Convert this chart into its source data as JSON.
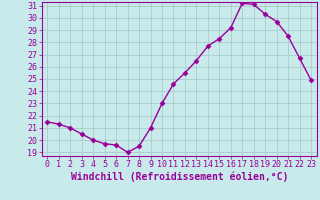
{
  "x": [
    0,
    1,
    2,
    3,
    4,
    5,
    6,
    7,
    8,
    9,
    10,
    11,
    12,
    13,
    14,
    15,
    16,
    17,
    18,
    19,
    20,
    21,
    22,
    23
  ],
  "y": [
    21.5,
    21.3,
    21.0,
    20.5,
    20.0,
    19.7,
    19.6,
    19.0,
    19.5,
    21.0,
    23.0,
    24.6,
    25.5,
    26.5,
    27.7,
    28.3,
    29.2,
    31.2,
    31.1,
    30.3,
    29.7,
    28.5,
    26.7,
    24.9
  ],
  "line_color": "#990099",
  "marker": "D",
  "marker_size": 2.5,
  "bg_color": "#c8eaea",
  "grid_color": "#aacccc",
  "xlabel": "Windchill (Refroidissement éolien,°C)",
  "ylim": [
    19,
    31
  ],
  "xlim": [
    -0.5,
    23.5
  ],
  "yticks": [
    19,
    20,
    21,
    22,
    23,
    24,
    25,
    26,
    27,
    28,
    29,
    30,
    31
  ],
  "xticks": [
    0,
    1,
    2,
    3,
    4,
    5,
    6,
    7,
    8,
    9,
    10,
    11,
    12,
    13,
    14,
    15,
    16,
    17,
    18,
    19,
    20,
    21,
    22,
    23
  ],
  "tick_color": "#990099",
  "label_color": "#990099",
  "tick_fontsize": 6,
  "xlabel_fontsize": 7,
  "linewidth": 1.0
}
